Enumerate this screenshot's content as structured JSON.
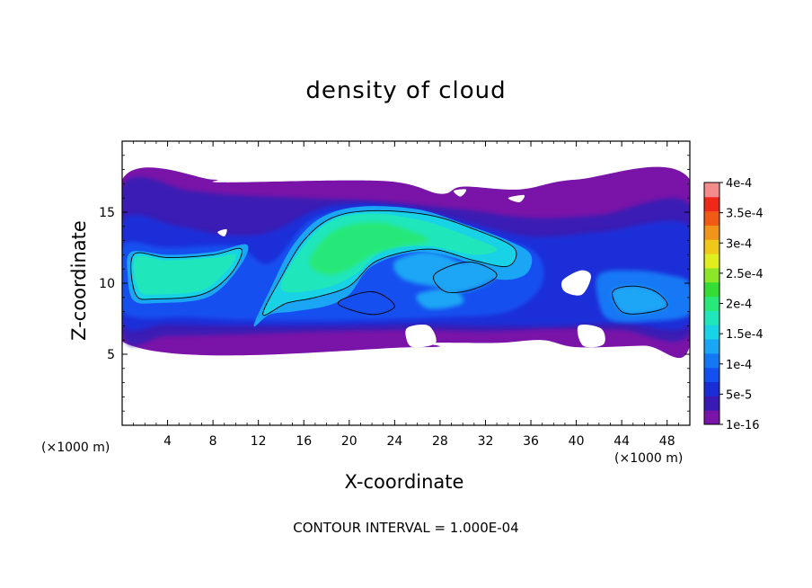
{
  "chart_data": {
    "type": "heatmap",
    "title": "density of cloud",
    "xlabel": "X-coordinate",
    "ylabel": "Z-coordinate",
    "x_unit_label_left": "(×1000 m)",
    "x_unit_label_right": "(×1000 m)",
    "footer": "CONTOUR INTERVAL = 1.000E-04",
    "xlim": [
      0,
      50
    ],
    "ylim": [
      0,
      20
    ],
    "x_ticks": [
      4,
      8,
      12,
      16,
      20,
      24,
      28,
      32,
      36,
      40,
      44,
      48
    ],
    "y_ticks": [
      5,
      10,
      15
    ],
    "colorbar": {
      "tick_labels": [
        "1e-16",
        "5e-5",
        "1e-4",
        "1.5e-4",
        "2e-4",
        "2.5e-4",
        "3e-4",
        "3.5e-4",
        "4e-4"
      ],
      "levels": [
        1e-16,
        2.5e-05,
        5e-05,
        7.5e-05,
        0.0001,
        0.000125,
        0.00015,
        0.000175,
        0.0002,
        0.000225,
        0.00025,
        0.000275,
        0.0003,
        0.000325,
        0.00035,
        0.000375,
        0.0004
      ],
      "colors": [
        "#7a14a8",
        "#3a1ab4",
        "#1a2ed8",
        "#1450f0",
        "#1478f5",
        "#1aa6f5",
        "#18d2e6",
        "#20e6bc",
        "#28e878",
        "#34dc34",
        "#8ce628",
        "#e0ee1e",
        "#f0c81a",
        "#f0941a",
        "#f05a14",
        "#f0281a",
        "#f58c8c"
      ]
    },
    "contour_levels": [
      0.0001
    ],
    "regions": [
      {
        "name": "cloud layer",
        "x_range": [
          0,
          50
        ],
        "z_range": [
          5.5,
          17.3
        ],
        "value": 2e-05
      },
      {
        "name": "left cell",
        "x_range": [
          1,
          11
        ],
        "z_range": [
          8.2,
          12.3
        ],
        "value": 0.00017
      },
      {
        "name": "main anvil",
        "x_range": [
          11.5,
          36
        ],
        "z_range": [
          7,
          15.5
        ],
        "value": 0.00019
      },
      {
        "name": "right cell",
        "x_range": [
          42,
          50
        ],
        "z_range": [
          7.5,
          10.5
        ],
        "value": 0.00011
      }
    ]
  }
}
